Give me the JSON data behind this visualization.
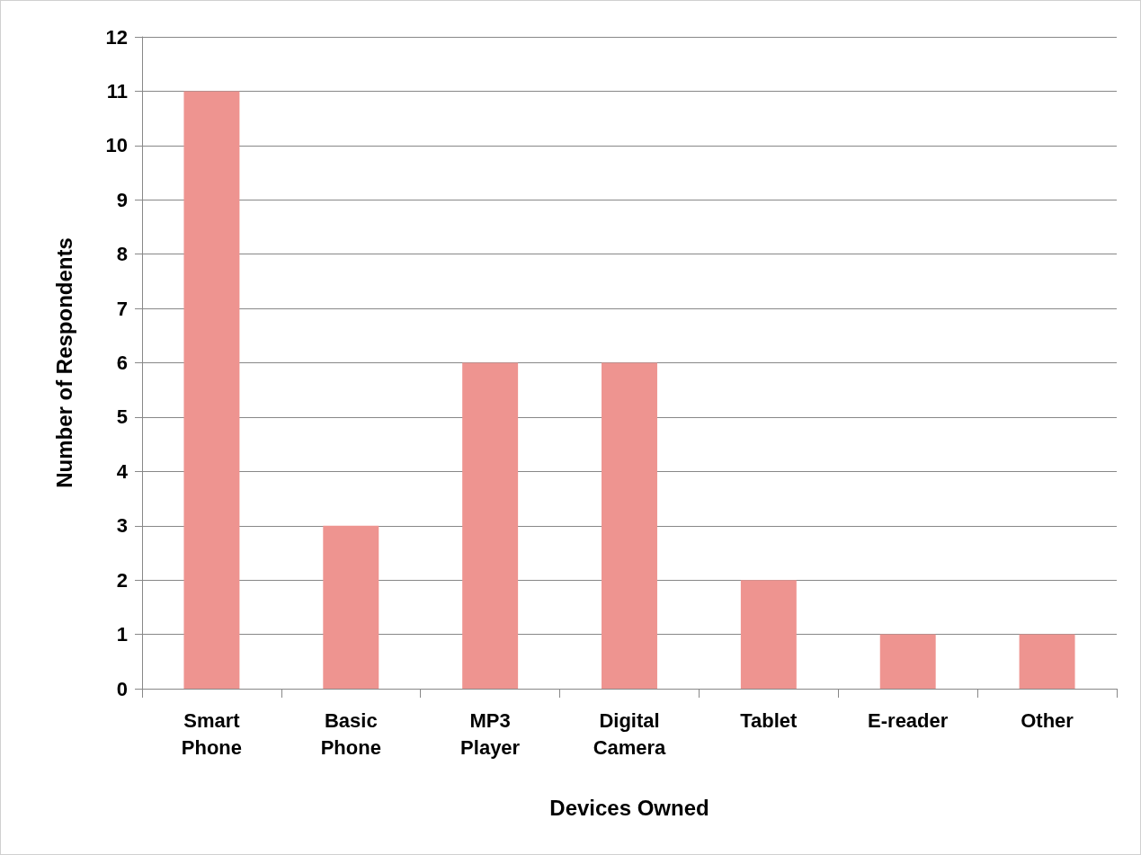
{
  "chart_data": {
    "type": "bar",
    "xlabel": "Devices Owned",
    "ylabel": "Number of Respondents",
    "categories": [
      "Smart\nPhone",
      "Basic\nPhone",
      "MP3\nPlayer",
      "Digital\nCamera",
      "Tablet",
      "E-reader",
      "Other"
    ],
    "values": [
      11,
      3,
      6,
      6,
      2,
      1,
      1
    ],
    "color": "#ee9490",
    "ylim": [
      0,
      12
    ],
    "yticks": [
      0,
      1,
      2,
      3,
      4,
      5,
      6,
      7,
      8,
      9,
      10,
      11,
      12
    ],
    "grid": "y"
  }
}
